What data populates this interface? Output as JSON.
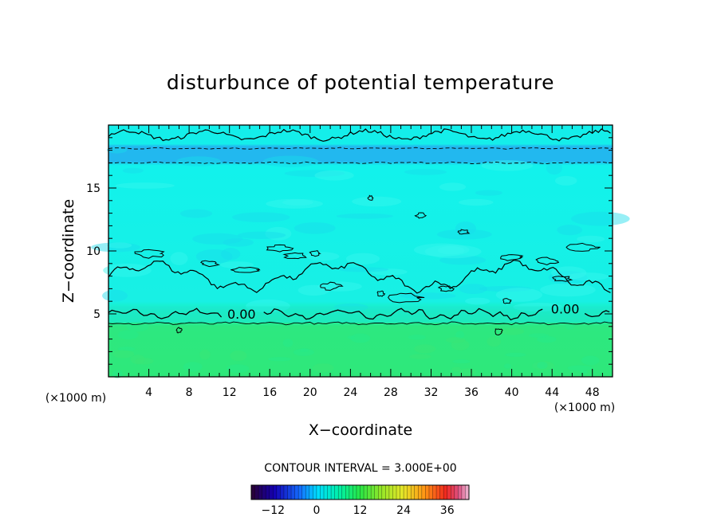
{
  "chart_data": {
    "type": "heatmap",
    "title": "disturbunce of potential temperature",
    "xlabel": "X−coordinate",
    "ylabel": "Z−coordinate",
    "x_unit": "(×1000 m)",
    "y_unit": "(×1000 m)",
    "xlim": [
      0,
      50
    ],
    "ylim": [
      0,
      20
    ],
    "x_ticks": [
      4,
      8,
      12,
      16,
      20,
      24,
      28,
      32,
      36,
      40,
      44,
      48
    ],
    "x_tick_labels": [
      "4",
      "8",
      "12",
      "16",
      "20",
      "24",
      "28",
      "32",
      "36",
      "40",
      "44",
      "48"
    ],
    "y_ticks": [
      5,
      10,
      15
    ],
    "y_tick_labels": [
      "5",
      "10",
      "15"
    ],
    "contour_interval_text": "CONTOUR INTERVAL = 3.000E+00",
    "contour_labels": [
      {
        "text": "0.00",
        "x": 13.2,
        "z": 5.0
      },
      {
        "text": "0.00",
        "x": 45.3,
        "z": 5.4
      }
    ],
    "z_bands": [
      {
        "z_from": 0.0,
        "z_to": 4.3,
        "value": 6.0
      },
      {
        "z_from": 4.3,
        "z_to": 5.0,
        "value": 1.0
      },
      {
        "z_from": 5.0,
        "z_to": 16.8,
        "value": -1.0
      },
      {
        "z_from": 16.8,
        "z_to": 18.5,
        "value": -4.0
      },
      {
        "z_from": 18.5,
        "z_to": 20.0,
        "value": -1.5
      }
    ],
    "colorbar": {
      "min": -18,
      "max": 42,
      "ticks": [
        -12,
        0,
        12,
        24,
        36
      ],
      "tick_labels": [
        "−12",
        "0",
        "12",
        "24",
        "36"
      ]
    }
  },
  "colors": {
    "field_surface": "#2ee87a",
    "field_low": "#19f0b0",
    "field_mid": "#12f2ec",
    "field_cold": "#1fb4f0",
    "contour": "#000000"
  }
}
